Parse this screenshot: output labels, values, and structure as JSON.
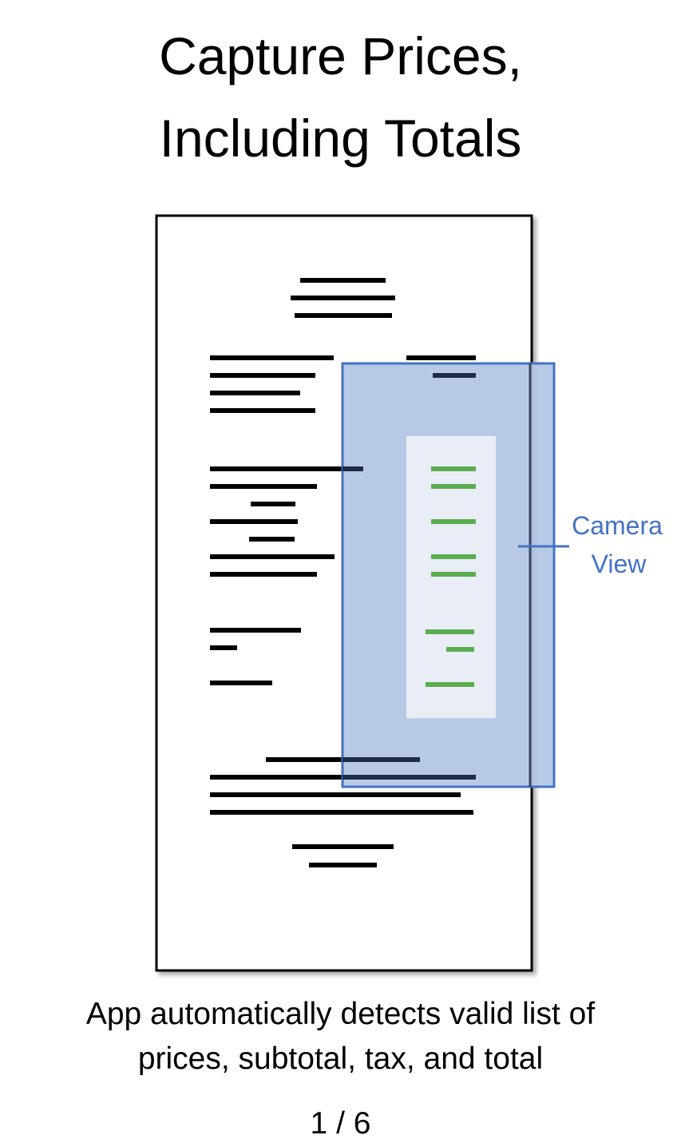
{
  "title": {
    "line1": "Capture Prices,",
    "line2": "Including Totals"
  },
  "camera_label": {
    "line1": "Camera",
    "line2": "View"
  },
  "caption": {
    "line1": "App automatically detects valid list of",
    "line2": "prices, subtotal, tax, and total"
  },
  "page_indicator": "1 / 6",
  "colors": {
    "receipt_border": "#000000",
    "text_line": "#000000",
    "camera_fill": "#b4c6e4",
    "camera_border": "#4472c4",
    "detection_panel": "#e9edf6",
    "detected_price": "#5aac4e",
    "label_text": "#4472c4"
  },
  "icons": {
    "receipt": "receipt-icon",
    "camera_view": "camera-frame"
  }
}
